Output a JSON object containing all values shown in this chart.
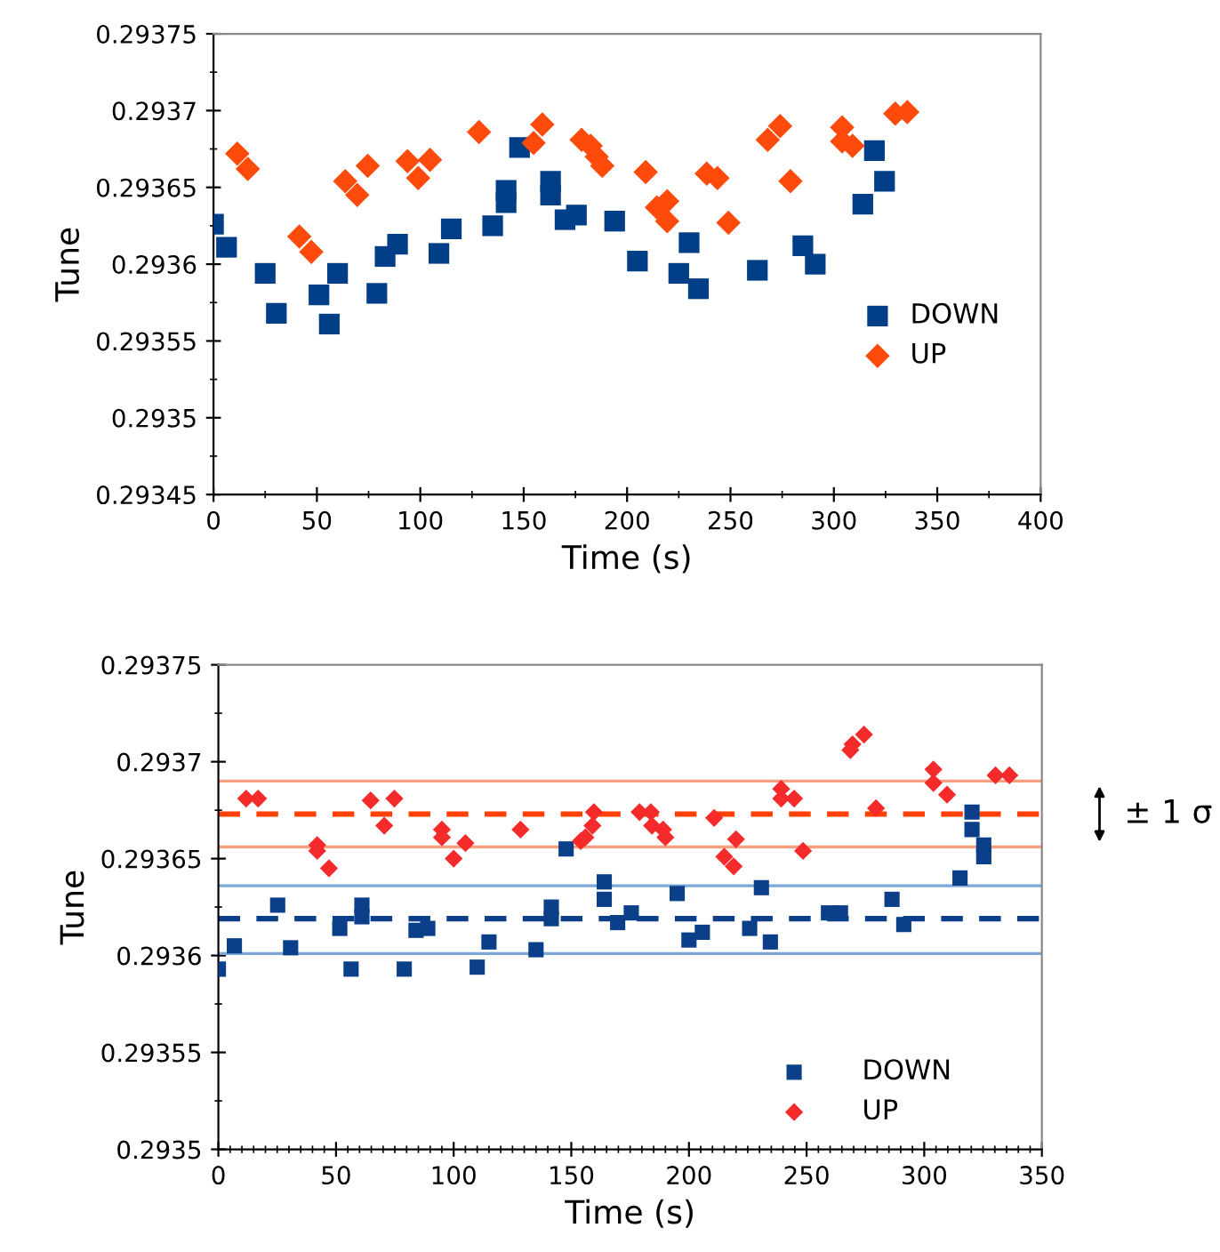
{
  "chart_data": [
    {
      "type": "scatter",
      "xlabel": "Time (s)",
      "ylabel": "Tune",
      "xlim": [
        0,
        400
      ],
      "ylim": [
        0.29345,
        0.29375
      ],
      "xticks": [
        0,
        50,
        100,
        150,
        200,
        250,
        300,
        350,
        400
      ],
      "yticks": [
        0.29345,
        0.2935,
        0.29355,
        0.2936,
        0.29365,
        0.2937,
        0.29375
      ],
      "grid": false,
      "legend": "lower right",
      "series": [
        {
          "name": "DOWN",
          "color": "#003f87",
          "marker": "square",
          "x": [
            0,
            6.3,
            25,
            30.4,
            51,
            56,
            60,
            79,
            83,
            89,
            109,
            115,
            135,
            141.5,
            141.5,
            148,
            163,
            163,
            170,
            175.5,
            194,
            205,
            225,
            230,
            234.5,
            263,
            285,
            291,
            314,
            319.6,
            324.5
          ],
          "values": [
            0.293626,
            0.293611,
            0.293594,
            0.293568,
            0.29358,
            0.293561,
            0.293594,
            0.293581,
            0.293605,
            0.293613,
            0.293607,
            0.293623,
            0.293625,
            0.293648,
            0.29364,
            0.293676,
            0.293654,
            0.293645,
            0.293629,
            0.293632,
            0.293628,
            0.293602,
            0.293594,
            0.293614,
            0.293584,
            0.293596,
            0.293612,
            0.2936,
            0.293639,
            0.293674,
            0.293654
          ]
        },
        {
          "name": "UP",
          "color": "#fe4a0a",
          "marker": "diamond",
          "x": [
            11.5,
            16.6,
            41.5,
            47.3,
            63.7,
            69.5,
            74.6,
            93.8,
            99,
            104.7,
            128.4,
            154.8,
            159,
            178,
            182.4,
            185.3,
            188,
            209,
            214.4,
            219.4,
            219.4,
            238.5,
            243.7,
            249,
            268,
            274,
            279,
            304,
            304,
            309,
            329.7,
            335.5
          ],
          "values": [
            0.293672,
            0.293662,
            0.293618,
            0.293608,
            0.293654,
            0.293645,
            0.293664,
            0.293667,
            0.293656,
            0.293668,
            0.293686,
            0.293679,
            0.293691,
            0.293681,
            0.293677,
            0.29367,
            0.293664,
            0.29366,
            0.293637,
            0.293641,
            0.293628,
            0.293659,
            0.293656,
            0.293627,
            0.293681,
            0.29369,
            0.293654,
            0.293689,
            0.29368,
            0.293677,
            0.293698,
            0.293699
          ]
        }
      ]
    },
    {
      "type": "scatter",
      "xlabel": "Time (s)",
      "ylabel": "Tune",
      "xlim": [
        0,
        350
      ],
      "ylim": [
        0.2935,
        0.29375
      ],
      "xticks": [
        0,
        50,
        100,
        150,
        200,
        250,
        300,
        350
      ],
      "yticks": [
        0.2935,
        0.29355,
        0.2936,
        0.29365,
        0.2937,
        0.29375
      ],
      "grid": false,
      "legend": "lower right",
      "annotations": [
        "± 1 σ"
      ],
      "ref_lines": [
        {
          "axis": "y",
          "value": 0.29369,
          "color": "#f7a080",
          "line_style": "solid"
        },
        {
          "axis": "y",
          "value": 0.293673,
          "color": "#ff4000",
          "line_style": "dashed"
        },
        {
          "axis": "y",
          "value": 0.293656,
          "color": "#f7a080",
          "line_style": "solid"
        },
        {
          "axis": "y",
          "value": 0.293636,
          "color": "#7ba7d6",
          "line_style": "solid"
        },
        {
          "axis": "y",
          "value": 0.293619,
          "color": "#0b3f8a",
          "line_style": "dashed"
        },
        {
          "axis": "y",
          "value": 0.293601,
          "color": "#7ba7d6",
          "line_style": "solid"
        }
      ],
      "series": [
        {
          "name": "DOWN",
          "color": "#0b3f8a",
          "marker": "square",
          "x": [
            0,
            6.8,
            25.2,
            30.7,
            51.6,
            56.4,
            61,
            61,
            79,
            84,
            89,
            110,
            115,
            135,
            141.5,
            141.5,
            147.8,
            164,
            164,
            169.7,
            175.5,
            195,
            200,
            205.7,
            225.8,
            230.8,
            234.6,
            259.3,
            264.4,
            286.3,
            291.3,
            315.2,
            320.3,
            320.3,
            325.3,
            325.3
          ],
          "values": [
            0.293593,
            0.293605,
            0.293626,
            0.293604,
            0.293614,
            0.293593,
            0.293626,
            0.29362,
            0.293593,
            0.293613,
            0.293614,
            0.293594,
            0.293607,
            0.293603,
            0.293625,
            0.293619,
            0.293655,
            0.293638,
            0.293629,
            0.293617,
            0.293622,
            0.293632,
            0.293608,
            0.293612,
            0.293614,
            0.293635,
            0.293607,
            0.293622,
            0.293622,
            0.293629,
            0.293616,
            0.29364,
            0.293674,
            0.293665,
            0.293657,
            0.293651
          ]
        },
        {
          "name": "UP",
          "color": "#f52a2a",
          "marker": "diamond",
          "x": [
            11.8,
            16.9,
            42,
            42,
            47,
            64.7,
            70.5,
            74.8,
            95,
            95,
            100,
            105,
            128.4,
            154,
            156,
            159,
            159.6,
            179,
            183.8,
            184.3,
            189,
            190,
            210.7,
            215,
            219,
            220,
            239.2,
            239.2,
            244.7,
            248.5,
            268.6,
            269.5,
            274.4,
            279.5,
            303.9,
            303.9,
            309.7,
            330.3,
            336.2
          ],
          "values": [
            0.293681,
            0.293681,
            0.293657,
            0.293654,
            0.293645,
            0.29368,
            0.293667,
            0.293681,
            0.293665,
            0.293661,
            0.29365,
            0.293658,
            0.293665,
            0.293659,
            0.293661,
            0.293667,
            0.293674,
            0.293674,
            0.293674,
            0.293667,
            0.293665,
            0.293661,
            0.293671,
            0.293651,
            0.293646,
            0.29366,
            0.293686,
            0.293681,
            0.293681,
            0.293654,
            0.293706,
            0.293709,
            0.293714,
            0.293676,
            0.293696,
            0.293689,
            0.293683,
            0.293693,
            0.293693
          ]
        }
      ]
    }
  ]
}
